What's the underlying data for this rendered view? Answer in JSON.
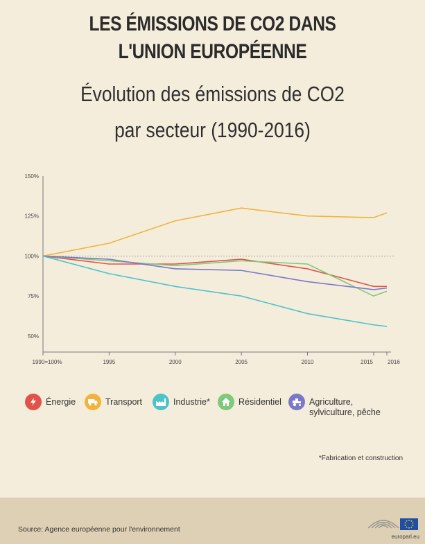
{
  "header": {
    "title_line1": "LES ÉMISSIONS DE CO2 DANS",
    "title_line2": "L'UNION EUROPÉENNE",
    "subtitle_line1": "Évolution des émissions de CO2",
    "subtitle_line2": "par secteur (1990-2016)"
  },
  "chart_data": {
    "type": "line",
    "x": [
      1990,
      1995,
      2000,
      2005,
      2010,
      2015,
      2016
    ],
    "x_tick_labels": [
      "1990=100%",
      "1995",
      "2000",
      "2005",
      "2010",
      "2015",
      "2016"
    ],
    "y_tick_labels": [
      "150%",
      "125%",
      "100%",
      "75%",
      "50%"
    ],
    "y_ticks": [
      150,
      125,
      100,
      75,
      50
    ],
    "ylim": [
      40,
      150
    ],
    "xlim": [
      1990,
      2016
    ],
    "reference_line": 100,
    "series": [
      {
        "name": "Transport",
        "color": "#f2b33d",
        "values": [
          100,
          108,
          122,
          130,
          125,
          124,
          127
        ]
      },
      {
        "name": "Énergie",
        "color": "#e0534a",
        "values": [
          100,
          95,
          95,
          98,
          92,
          81,
          81
        ]
      },
      {
        "name": "Résidentiel",
        "color": "#7fc97a",
        "values": [
          100,
          97,
          94,
          97,
          95,
          75,
          78
        ]
      },
      {
        "name": "Agriculture, sylviculture, pêche",
        "color": "#7b78c8",
        "values": [
          100,
          98,
          92,
          91,
          84,
          79,
          80
        ]
      },
      {
        "name": "Industrie*",
        "color": "#4cc3c9",
        "values": [
          100,
          89,
          81,
          75,
          64,
          57,
          56
        ]
      }
    ]
  },
  "legend": [
    {
      "label": "Énergie",
      "color": "#e0534a",
      "icon": "lightning-icon"
    },
    {
      "label": "Transport",
      "color": "#f2b33d",
      "icon": "truck-icon"
    },
    {
      "label": "Industrie*",
      "color": "#4cc3c9",
      "icon": "factory-icon"
    },
    {
      "label": "Résidentiel",
      "color": "#7fc97a",
      "icon": "house-icon"
    },
    {
      "label": "Agriculture, sylviculture, pêche",
      "color": "#7b78c8",
      "icon": "tractor-icon"
    }
  ],
  "footnote": "*Fabrication et construction",
  "footer": {
    "source": "Source: Agence européenne pour l'environnement",
    "brand": "europarl.eu"
  }
}
